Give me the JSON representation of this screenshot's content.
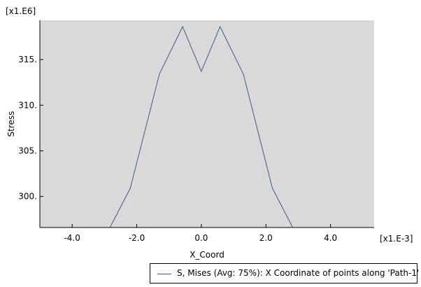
{
  "colors": {
    "plot_background": "#d9d9d9",
    "line": "#3f5d82",
    "axis": "#000000"
  },
  "chart_data": {
    "type": "line",
    "xlabel": "X_Coord",
    "ylabel": "Stress",
    "x_multiplier": "[x1.E-3]",
    "y_multiplier": "[x1.E6]",
    "xlim": [
      -5.0,
      5.35
    ],
    "ylim": [
      296.6,
      319.3
    ],
    "x_ticks": [
      -4.0,
      -2.0,
      0.0,
      2.0,
      4.0
    ],
    "x_tick_labels": [
      "-4.0",
      "-2.0",
      "0.0",
      "2.0",
      "4.0"
    ],
    "y_ticks": [
      300,
      305,
      310,
      315
    ],
    "y_tick_labels": [
      "300.",
      "305.",
      "310.",
      "315."
    ],
    "grid": false,
    "legend_position": "bottom-right",
    "series": [
      {
        "name": "S, Mises (Avg: 75%): X Coordinate of points along 'Path-1'",
        "x": [
          -2.83,
          -2.2,
          -1.3,
          -0.58,
          0.0,
          0.58,
          1.3,
          2.2,
          2.83
        ],
        "y": [
          296.6,
          300.9,
          313.4,
          318.6,
          313.7,
          318.6,
          313.4,
          300.9,
          296.6
        ]
      }
    ]
  }
}
